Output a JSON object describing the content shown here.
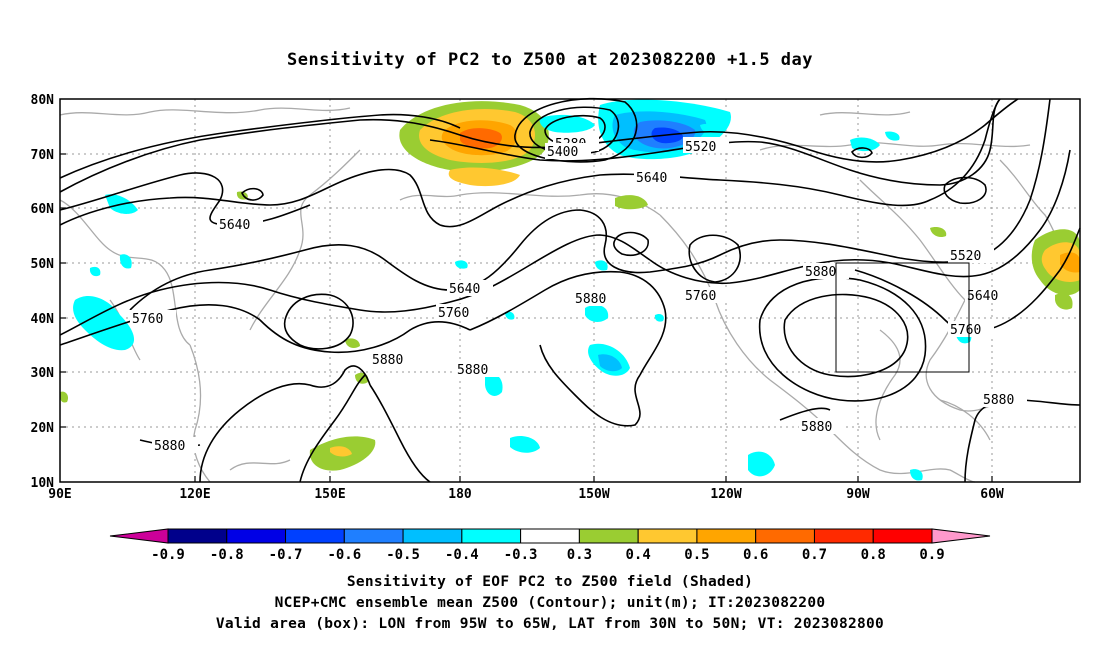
{
  "title": "Sensitivity of PC2 to Z500 at 2023082200 +1.5 day",
  "map": {
    "lon_ticks": [
      "90E",
      "120E",
      "150E",
      "180",
      "150W",
      "120W",
      "90W",
      "60W"
    ],
    "lat_ticks": [
      "80N",
      "70N",
      "60N",
      "50N",
      "40N",
      "30N",
      "20N",
      "10N"
    ],
    "grid": "dotted",
    "valid_box": {
      "lon_range": [
        "95W",
        "65W"
      ],
      "lat_range": [
        "30N",
        "50N"
      ]
    }
  },
  "contour_labels": [
    {
      "text": "5640"
    },
    {
      "text": "5760"
    },
    {
      "text": "5880"
    },
    {
      "text": "5880"
    },
    {
      "text": "5280"
    },
    {
      "text": "5400"
    },
    {
      "text": "5520"
    },
    {
      "text": "5640"
    },
    {
      "text": "5640"
    },
    {
      "text": "5760"
    },
    {
      "text": "5880"
    },
    {
      "text": "5880"
    },
    {
      "text": "5760"
    },
    {
      "text": "5880"
    },
    {
      "text": "5880"
    },
    {
      "text": "5520"
    },
    {
      "text": "5640"
    },
    {
      "text": "5760"
    },
    {
      "text": "5880"
    }
  ],
  "colorbar": {
    "labels": [
      "-0.9",
      "-0.8",
      "-0.7",
      "-0.6",
      "-0.5",
      "-0.4",
      "-0.3",
      "0.3",
      "0.4",
      "0.5",
      "0.6",
      "0.7",
      "0.8",
      "0.9"
    ],
    "colors": [
      "#00008b",
      "#0000e6",
      "#0040ff",
      "#1f7fff",
      "#00bfff",
      "#00ffff",
      "#ffffff",
      "#9acd32",
      "#ffc830",
      "#ffa500",
      "#ff6a00",
      "#ff2a00",
      "#ff0000"
    ],
    "low_tip": "#cc0099",
    "high_tip": "#ff99cc"
  },
  "captions": [
    "Sensitivity of EOF PC2 to Z500 field (Shaded)",
    "NCEP+CMC ensemble mean Z500 (Contour); unit(m); IT:2023082200",
    "Valid area (box): LON from 95W to 65W, LAT from 30N to 50N; VT: 2023082800"
  ]
}
